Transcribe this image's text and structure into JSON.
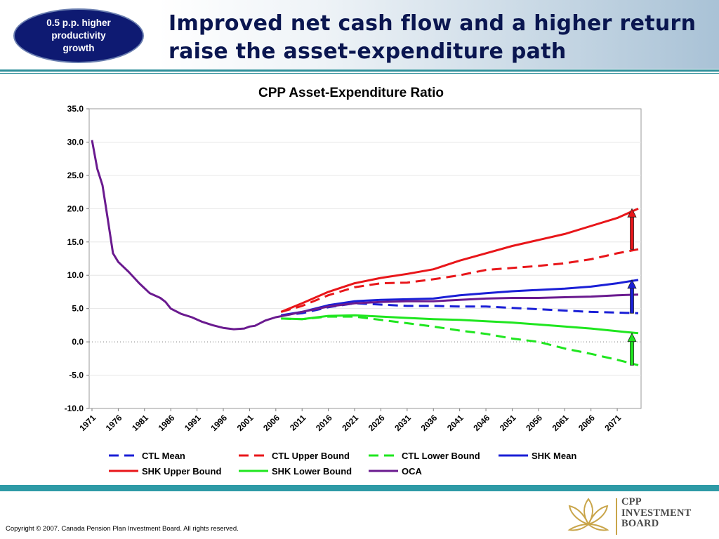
{
  "header": {
    "badge_text": "0.5 p.p. higher productivity growth",
    "title": "Improved net cash flow and a higher return raise the asset-expenditure path"
  },
  "footer": {
    "copyright": "Copyright © 2007. Canada Pension Plan Investment Board. All rights reserved.",
    "logo_lines": [
      "CPP",
      "INVESTMENT",
      "BOARD"
    ]
  },
  "colors": {
    "accent_teal": "#2e9aa6",
    "title_navy": "#0a1650",
    "badge_navy": "#0e1a72",
    "logo_gold": "#c9a54a"
  },
  "chart_data": {
    "type": "line",
    "title": "CPP Asset-Expenditure Ratio",
    "xlabel": "",
    "ylabel": "",
    "xlim": [
      1971,
      2075
    ],
    "ylim": [
      -10,
      35
    ],
    "y_ticks": [
      "35.0",
      "30.0",
      "25.0",
      "20.0",
      "15.0",
      "10.0",
      "5.0",
      "0.0",
      "-5.0",
      "-10.0"
    ],
    "x_ticks": [
      "1971",
      "1976",
      "1981",
      "1986",
      "1991",
      "1996",
      "2001",
      "2006",
      "2011",
      "2016",
      "2021",
      "2026",
      "2031",
      "2036",
      "2041",
      "2046",
      "2051",
      "2056",
      "2061",
      "2066",
      "2071"
    ],
    "grid": "horizontal",
    "legend_position": "bottom",
    "series": [
      {
        "name": "CTL Mean",
        "color": "#1a1fd6",
        "dash": true,
        "points": [
          [
            2007,
            4.0
          ],
          [
            2011,
            4.3
          ],
          [
            2016,
            5.2
          ],
          [
            2021,
            5.8
          ],
          [
            2026,
            5.6
          ],
          [
            2031,
            5.4
          ],
          [
            2036,
            5.4
          ],
          [
            2041,
            5.3
          ],
          [
            2046,
            5.3
          ],
          [
            2051,
            5.1
          ],
          [
            2056,
            4.9
          ],
          [
            2061,
            4.7
          ],
          [
            2066,
            4.5
          ],
          [
            2071,
            4.4
          ],
          [
            2075,
            4.3
          ]
        ]
      },
      {
        "name": "CTL Upper Bound",
        "color": "#e8161a",
        "dash": true,
        "points": [
          [
            2007,
            4.5
          ],
          [
            2011,
            5.4
          ],
          [
            2016,
            7.0
          ],
          [
            2021,
            8.2
          ],
          [
            2026,
            8.8
          ],
          [
            2031,
            8.9
          ],
          [
            2036,
            9.4
          ],
          [
            2041,
            10.0
          ],
          [
            2046,
            10.8
          ],
          [
            2051,
            11.1
          ],
          [
            2056,
            11.4
          ],
          [
            2061,
            11.8
          ],
          [
            2066,
            12.4
          ],
          [
            2071,
            13.3
          ],
          [
            2075,
            13.9
          ]
        ]
      },
      {
        "name": "CTL Lower Bound",
        "color": "#1fe61f",
        "dash": true,
        "points": [
          [
            2007,
            3.5
          ],
          [
            2011,
            3.4
          ],
          [
            2016,
            3.8
          ],
          [
            2021,
            3.8
          ],
          [
            2026,
            3.3
          ],
          [
            2031,
            2.8
          ],
          [
            2036,
            2.3
          ],
          [
            2041,
            1.7
          ],
          [
            2046,
            1.2
          ],
          [
            2051,
            0.5
          ],
          [
            2056,
            0.0
          ],
          [
            2061,
            -1.0
          ],
          [
            2066,
            -1.8
          ],
          [
            2071,
            -2.7
          ],
          [
            2075,
            -3.5
          ]
        ]
      },
      {
        "name": "SHK Mean",
        "color": "#1a1fd6",
        "dash": false,
        "points": [
          [
            2007,
            4.0
          ],
          [
            2011,
            4.5
          ],
          [
            2016,
            5.5
          ],
          [
            2021,
            6.1
          ],
          [
            2026,
            6.3
          ],
          [
            2031,
            6.4
          ],
          [
            2036,
            6.5
          ],
          [
            2041,
            7.0
          ],
          [
            2046,
            7.3
          ],
          [
            2051,
            7.6
          ],
          [
            2056,
            7.8
          ],
          [
            2061,
            8.0
          ],
          [
            2066,
            8.3
          ],
          [
            2071,
            8.8
          ],
          [
            2075,
            9.3
          ]
        ]
      },
      {
        "name": "SHK Upper Bound",
        "color": "#e8161a",
        "dash": false,
        "points": [
          [
            2007,
            4.5
          ],
          [
            2011,
            5.8
          ],
          [
            2016,
            7.5
          ],
          [
            2021,
            8.8
          ],
          [
            2026,
            9.6
          ],
          [
            2031,
            10.2
          ],
          [
            2036,
            10.9
          ],
          [
            2041,
            12.2
          ],
          [
            2046,
            13.3
          ],
          [
            2051,
            14.4
          ],
          [
            2056,
            15.3
          ],
          [
            2061,
            16.2
          ],
          [
            2066,
            17.4
          ],
          [
            2071,
            18.6
          ],
          [
            2075,
            20.0
          ]
        ]
      },
      {
        "name": "SHK Lower Bound",
        "color": "#1fe61f",
        "dash": false,
        "points": [
          [
            2007,
            3.5
          ],
          [
            2011,
            3.4
          ],
          [
            2016,
            3.9
          ],
          [
            2021,
            4.0
          ],
          [
            2026,
            3.8
          ],
          [
            2031,
            3.6
          ],
          [
            2036,
            3.4
          ],
          [
            2041,
            3.3
          ],
          [
            2046,
            3.1
          ],
          [
            2051,
            2.9
          ],
          [
            2056,
            2.6
          ],
          [
            2061,
            2.3
          ],
          [
            2066,
            2.0
          ],
          [
            2071,
            1.6
          ],
          [
            2075,
            1.3
          ]
        ]
      },
      {
        "name": "OCA",
        "color": "#6a1a8f",
        "dash": false,
        "points": [
          [
            1971,
            30.3
          ],
          [
            1972,
            26.0
          ],
          [
            1973,
            23.5
          ],
          [
            1974,
            18.5
          ],
          [
            1975,
            13.3
          ],
          [
            1976,
            12.0
          ],
          [
            1978,
            10.5
          ],
          [
            1980,
            8.8
          ],
          [
            1982,
            7.3
          ],
          [
            1984,
            6.6
          ],
          [
            1985,
            6.0
          ],
          [
            1986,
            5.0
          ],
          [
            1988,
            4.2
          ],
          [
            1990,
            3.7
          ],
          [
            1992,
            3.0
          ],
          [
            1994,
            2.5
          ],
          [
            1996,
            2.1
          ],
          [
            1998,
            1.9
          ],
          [
            2000,
            2.0
          ],
          [
            2001,
            2.3
          ],
          [
            2002,
            2.4
          ],
          [
            2004,
            3.2
          ],
          [
            2006,
            3.7
          ],
          [
            2008,
            4.0
          ],
          [
            2011,
            4.5
          ],
          [
            2016,
            5.3
          ],
          [
            2021,
            5.8
          ],
          [
            2026,
            6.0
          ],
          [
            2031,
            6.1
          ],
          [
            2036,
            6.1
          ],
          [
            2041,
            6.3
          ],
          [
            2046,
            6.5
          ],
          [
            2051,
            6.6
          ],
          [
            2056,
            6.6
          ],
          [
            2061,
            6.7
          ],
          [
            2066,
            6.8
          ],
          [
            2071,
            7.0
          ],
          [
            2075,
            7.1
          ]
        ]
      }
    ],
    "annotations": [
      {
        "type": "arrow",
        "color": "#e8161a",
        "x": 2075,
        "from": 13.9,
        "to": 20.0
      },
      {
        "type": "arrow",
        "color": "#1a1fd6",
        "x": 2075,
        "from": 4.3,
        "to": 9.3
      },
      {
        "type": "arrow",
        "color": "#1fe61f",
        "x": 2075,
        "from": -3.5,
        "to": 1.3
      }
    ]
  }
}
